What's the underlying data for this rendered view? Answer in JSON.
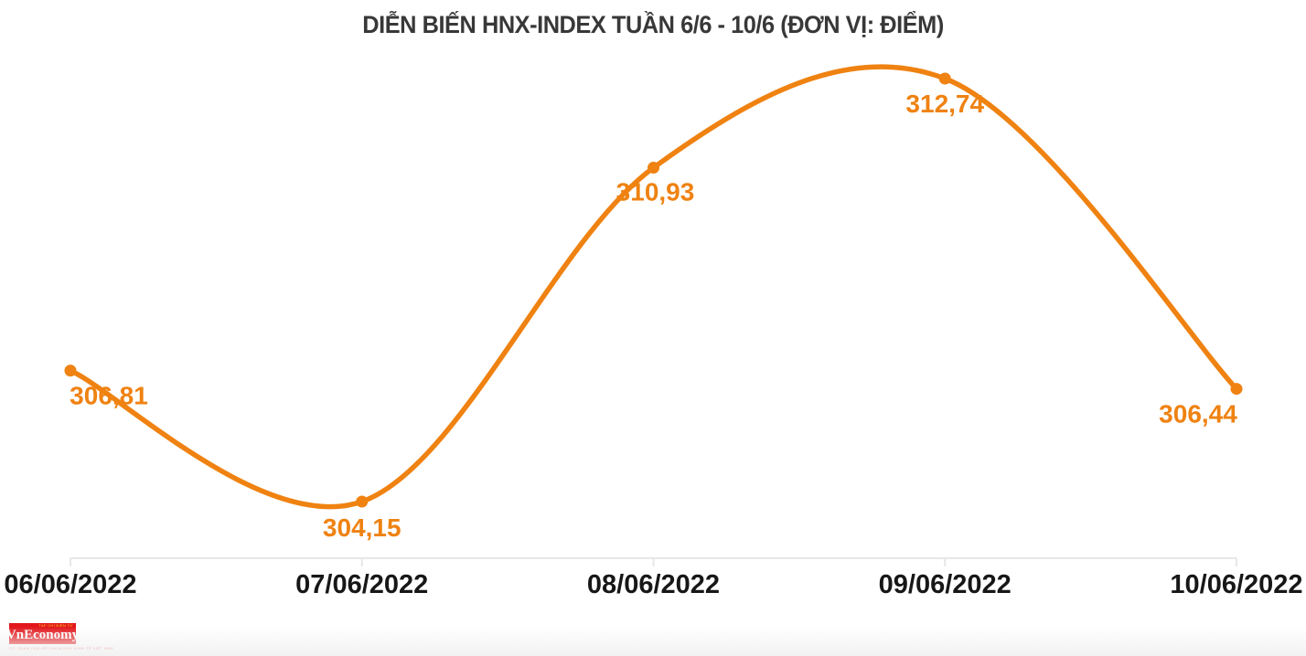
{
  "title": "DIỄN BIẾN HNX-INDEX TUẦN 6/6 - 10/6 (ĐƠN VỊ: ĐIỂM)",
  "chart_data": {
    "type": "line",
    "title": "DIỄN BIẾN HNX-INDEX TUẦN 6/6 - 10/6 (ĐƠN VỊ: ĐIỂM)",
    "categories": [
      "06/06/2022",
      "07/06/2022",
      "08/06/2022",
      "09/06/2022",
      "10/06/2022"
    ],
    "series": [
      {
        "name": "HNX-Index",
        "values": [
          306.81,
          304.15,
          310.93,
          312.74,
          306.44
        ]
      }
    ],
    "point_labels": [
      "306,81",
      "304,15",
      "310,93",
      "312,74",
      "306,44"
    ],
    "unit": "ĐIỂM",
    "ylim": [
      303.0,
      313.5
    ],
    "grid": false,
    "legend": false,
    "smooth": true,
    "line_color": "#EF8211",
    "point_color": "#EF8211",
    "point_label_color": "#EF8211",
    "axis_line_color": "#E7E7E7",
    "x_label_color": "#171717"
  },
  "branding": {
    "logo_text": "VnEconomy",
    "logo_top_text": "TẠP CHÍ ĐIỆN TỬ",
    "tagline": "CƠ QUAN CỦA HỘI KHOA HỌC KINH TẾ VIỆT NAM"
  }
}
